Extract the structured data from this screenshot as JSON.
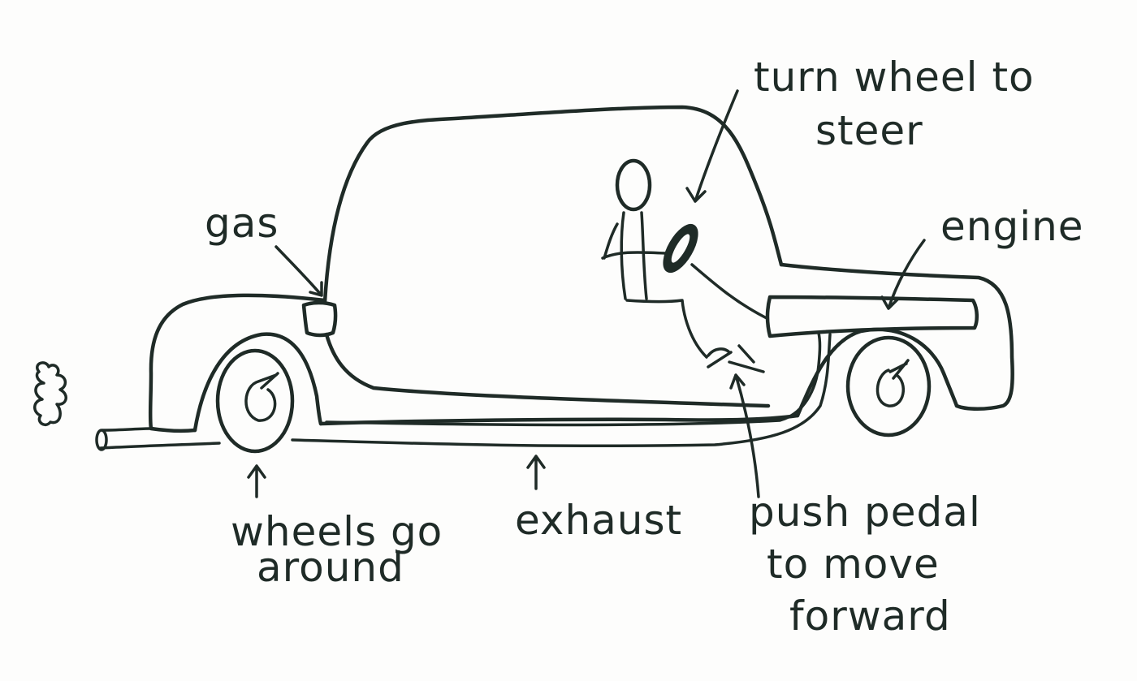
{
  "labels": {
    "gas": "gas",
    "turn_wheel_line1": "turn wheel to",
    "turn_wheel_line2": "steer",
    "engine": "engine",
    "wheels_line1": "wheels go",
    "wheels_line2": "around",
    "exhaust": "exhaust",
    "pedal_line1": "push pedal",
    "pedal_line2": "to move",
    "pedal_line3": "forward"
  },
  "colors": {
    "ink": "#1f2b27",
    "paper": "#fdfdfc"
  }
}
